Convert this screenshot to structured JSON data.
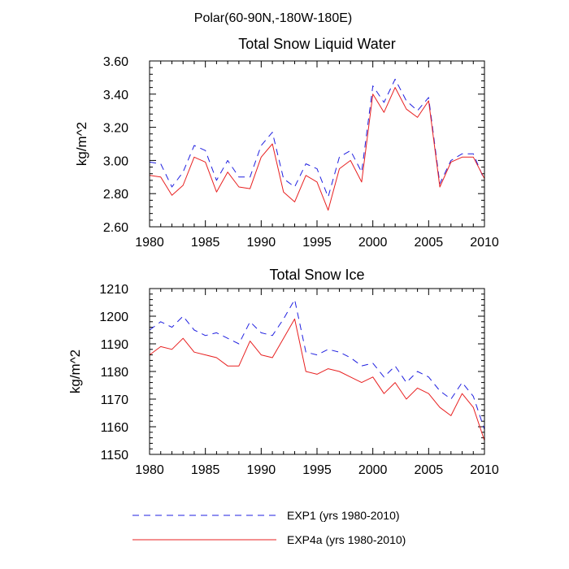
{
  "suptitle": "Polar(60-90N,-180W-180E)",
  "colors": {
    "exp1": "#1f1fe0",
    "exp4a": "#e82020",
    "axes": "#000000"
  },
  "legend": {
    "position": "bottom",
    "entries": [
      {
        "label": "EXP1 (yrs 1980-2010)",
        "style": "dashed",
        "color": "#1f1fe0"
      },
      {
        "label": "EXP4a (yrs 1980-2010)",
        "style": "solid",
        "color": "#e82020"
      }
    ]
  },
  "chart_data": [
    {
      "type": "line",
      "title": "Total Snow Liquid Water",
      "xlabel": "",
      "ylabel": "kg/m^2",
      "xlim": [
        1980,
        2010
      ],
      "ylim": [
        2.6,
        3.6
      ],
      "xticks": [
        1980,
        1985,
        1990,
        1995,
        2000,
        2005,
        2010
      ],
      "xtick_labels": [
        "1980",
        "1985",
        "1990",
        "1995",
        "2000",
        "2005",
        "2010"
      ],
      "yticks": [
        2.6,
        2.8,
        3.0,
        3.2,
        3.4,
        3.6
      ],
      "ytick_labels": [
        "2.60",
        "2.80",
        "3.00",
        "3.20",
        "3.40",
        "3.60"
      ],
      "grid": false,
      "x": [
        1980,
        1981,
        1982,
        1983,
        1984,
        1985,
        1986,
        1987,
        1988,
        1989,
        1990,
        1991,
        1992,
        1993,
        1994,
        1995,
        1996,
        1997,
        1998,
        1999,
        2000,
        2001,
        2002,
        2003,
        2004,
        2005,
        2006,
        2007,
        2008,
        2009,
        2010
      ],
      "series": [
        {
          "name": "EXP1 (yrs 1980-2010)",
          "style": "dashed",
          "values": [
            2.99,
            2.98,
            2.84,
            2.93,
            3.09,
            3.06,
            2.88,
            3.0,
            2.9,
            2.9,
            3.09,
            3.17,
            2.89,
            2.84,
            2.98,
            2.95,
            2.78,
            3.02,
            3.06,
            2.93,
            3.45,
            3.35,
            3.49,
            3.36,
            3.3,
            3.38,
            2.86,
            3.0,
            3.04,
            3.04,
            2.88
          ]
        },
        {
          "name": "EXP4a (yrs 1980-2010)",
          "style": "solid",
          "values": [
            2.91,
            2.9,
            2.79,
            2.85,
            3.02,
            2.99,
            2.81,
            2.93,
            2.84,
            2.83,
            3.02,
            3.1,
            2.81,
            2.75,
            2.91,
            2.87,
            2.7,
            2.95,
            3.0,
            2.87,
            3.4,
            3.29,
            3.44,
            3.31,
            3.26,
            3.36,
            2.84,
            2.99,
            3.02,
            3.02,
            2.89
          ]
        }
      ]
    },
    {
      "type": "line",
      "title": "Total Snow Ice",
      "xlabel": "",
      "ylabel": "kg/m^2",
      "xlim": [
        1980,
        2010
      ],
      "ylim": [
        1150,
        1210
      ],
      "xticks": [
        1980,
        1985,
        1990,
        1995,
        2000,
        2005,
        2010
      ],
      "xtick_labels": [
        "1980",
        "1985",
        "1990",
        "1995",
        "2000",
        "2005",
        "2010"
      ],
      "yticks": [
        1150,
        1160,
        1170,
        1180,
        1190,
        1200,
        1210
      ],
      "ytick_labels": [
        "1150",
        "1160",
        "1170",
        "1180",
        "1190",
        "1200",
        "1210"
      ],
      "grid": false,
      "x": [
        1980,
        1981,
        1982,
        1983,
        1984,
        1985,
        1986,
        1987,
        1988,
        1989,
        1990,
        1991,
        1992,
        1993,
        1994,
        1995,
        1996,
        1997,
        1998,
        1999,
        2000,
        2001,
        2002,
        2003,
        2004,
        2005,
        2006,
        2007,
        2008,
        2009,
        2010
      ],
      "series": [
        {
          "name": "EXP1 (yrs 1980-2010)",
          "style": "dashed",
          "values": [
            1195,
            1198,
            1196,
            1200,
            1195,
            1193,
            1194,
            1192,
            1190,
            1198,
            1194,
            1193,
            1199,
            1206,
            1187,
            1186,
            1188,
            1187,
            1185,
            1182,
            1183,
            1178,
            1182,
            1176,
            1180,
            1178,
            1173,
            1170,
            1176,
            1171,
            1159
          ]
        },
        {
          "name": "EXP4a (yrs 1980-2010)",
          "style": "solid",
          "values": [
            1186,
            1189,
            1188,
            1192,
            1187,
            1186,
            1185,
            1182,
            1182,
            1191,
            1186,
            1185,
            1192,
            1199,
            1180,
            1179,
            1181,
            1180,
            1178,
            1176,
            1178,
            1172,
            1176,
            1170,
            1174,
            1172,
            1167,
            1164,
            1172,
            1167,
            1155
          ]
        }
      ]
    }
  ]
}
